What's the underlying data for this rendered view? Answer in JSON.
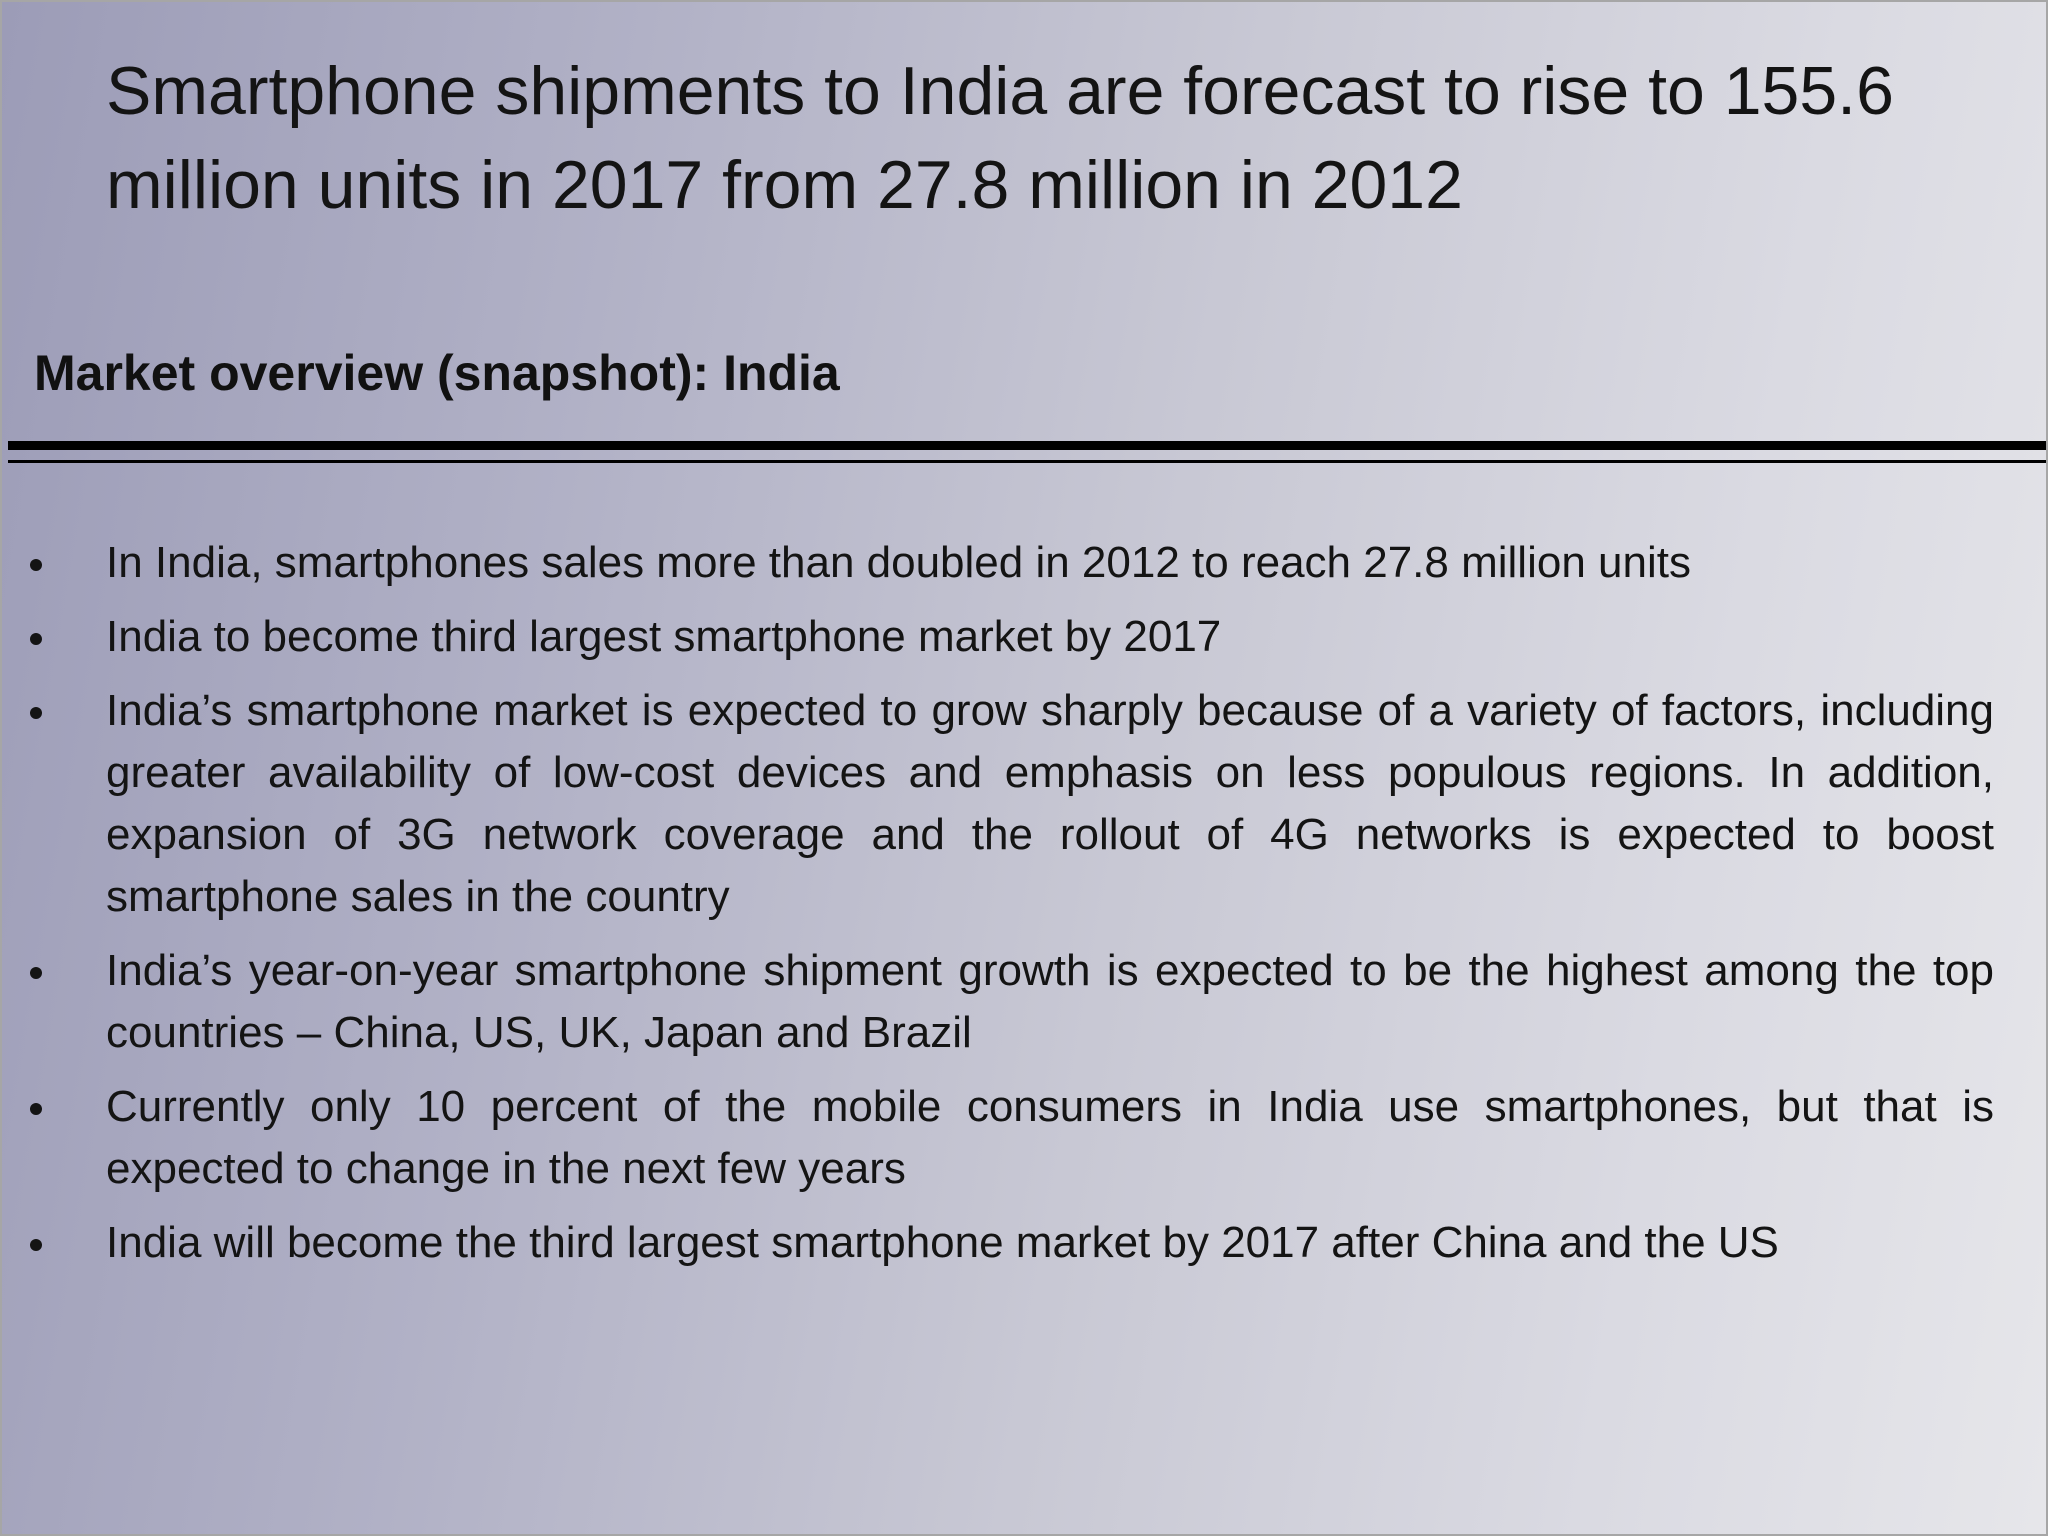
{
  "slide": {
    "title": "Smartphone shipments to India are forecast to rise to 155.6 million units in 2017 from 27.8 million in 2012",
    "subtitle": "Market overview (snapshot): India",
    "bullets": [
      "In India, smartphones sales more than doubled in 2012 to reach 27.8 million units",
      "India to become third largest smartphone market by 2017",
      "India’s smartphone market is expected to grow sharply because of a variety of factors, including greater availability of low-cost devices and emphasis on less populous regions. In addition, expansion of 3G network coverage and the rollout of 4G networks is expected to boost smartphone sales in the country",
      "India’s year-on-year smartphone shipment growth is expected to be the highest among the top countries – China, US, UK, Japan and Brazil",
      "Currently only 10 percent of the mobile consumers in India use smartphones, but that is expected to change in the next few years",
      "India will become the third largest smartphone market by 2017 after China and the US"
    ]
  }
}
